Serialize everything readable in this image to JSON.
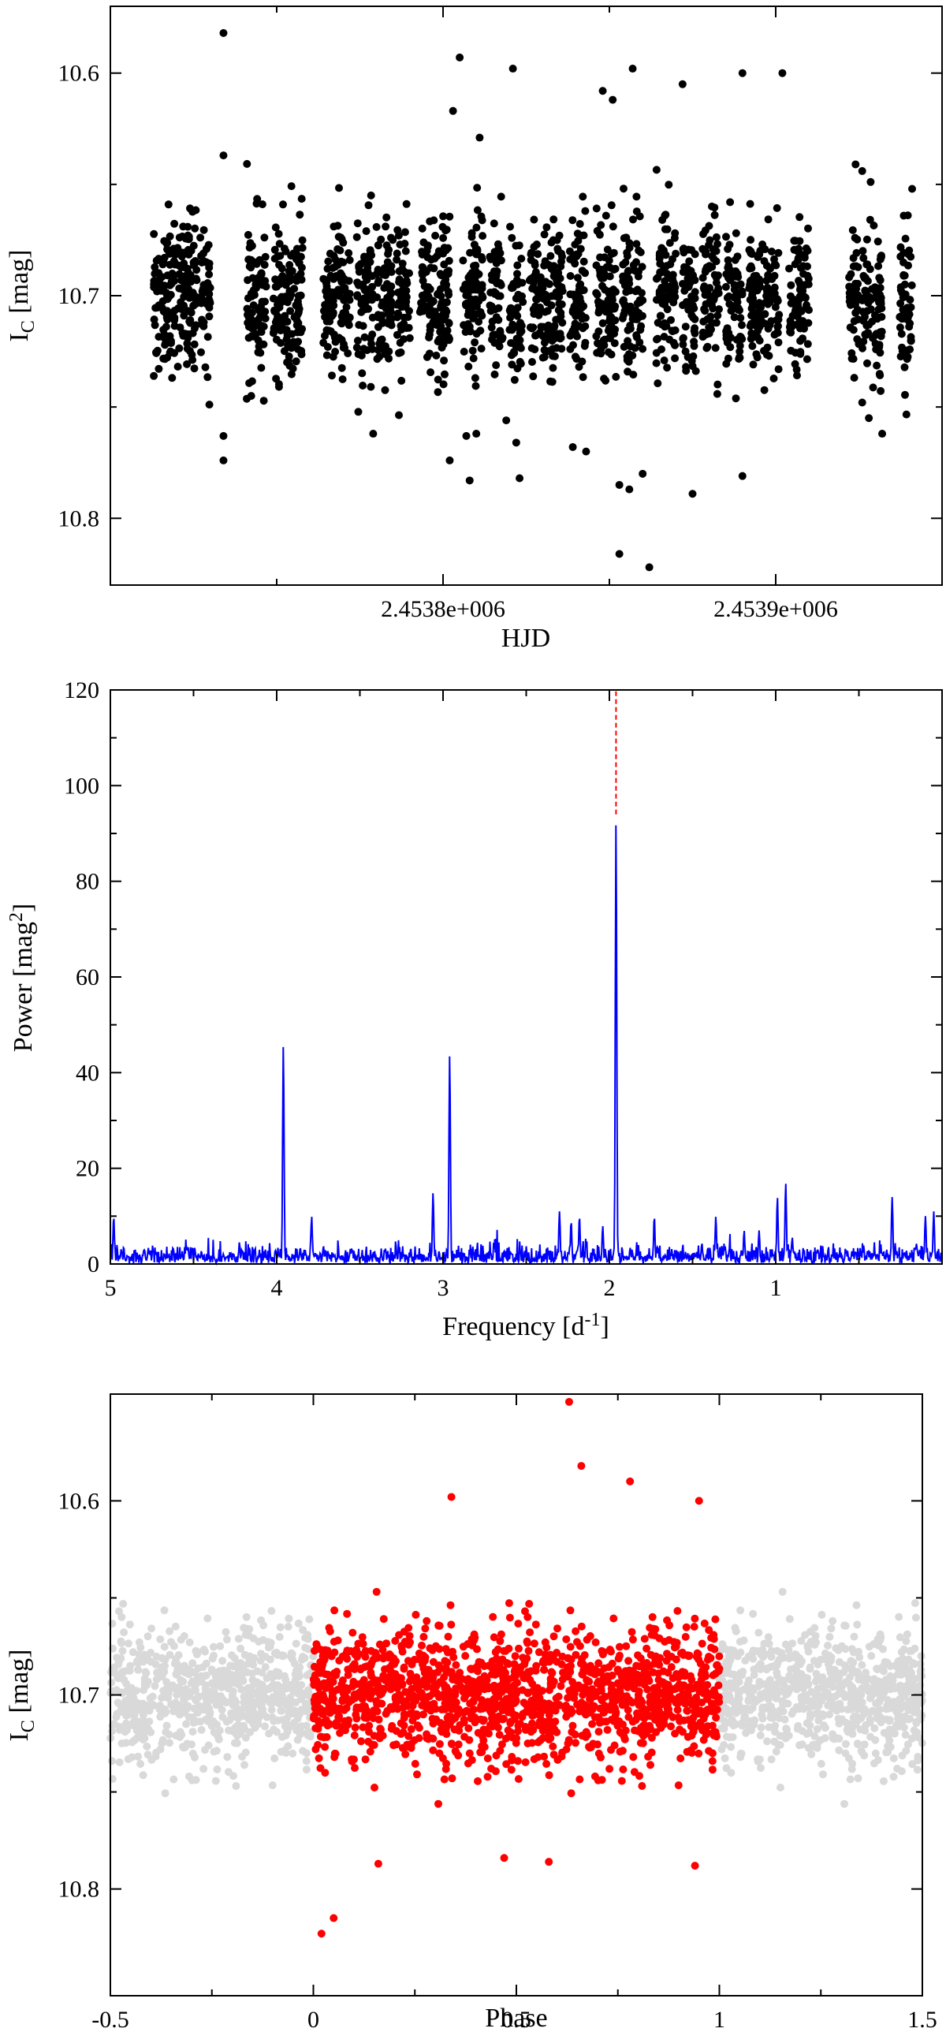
{
  "chart_data": [
    {
      "type": "scatter",
      "xlabel": "HJD",
      "ylabel_main": "I",
      "ylabel_sub": "C",
      "ylabel_unit": " [mag]",
      "xlim": [
        2453700,
        2453950
      ],
      "ylim": [
        10.83,
        10.57
      ],
      "y_inverted": true,
      "xticks": [
        {
          "value": 2453800,
          "label": "2.4538e+006"
        },
        {
          "value": 2453900,
          "label": "2.4539e+006"
        }
      ],
      "yticks": [
        {
          "value": 10.6,
          "label": "10.6"
        },
        {
          "value": 10.7,
          "label": "10.7"
        },
        {
          "value": 10.8,
          "label": "10.8"
        }
      ],
      "y_minor_ticks": [
        10.65,
        10.75
      ],
      "marker_color": "#000000",
      "mean_mag": 10.7,
      "observing_blocks_hjd": [
        [
          2453713,
          2453726
        ],
        [
          2453727,
          2453730
        ],
        [
          2453741,
          2453747
        ],
        [
          2453749,
          2453758
        ],
        [
          2453764,
          2453772
        ],
        [
          2453774,
          2453779
        ],
        [
          2453780,
          2453785
        ],
        [
          2453786,
          2453790
        ],
        [
          2453793,
          2453802
        ],
        [
          2453806,
          2453812
        ],
        [
          2453814,
          2453818
        ],
        [
          2453820,
          2453824
        ],
        [
          2453826,
          2453836
        ],
        [
          2453838,
          2453843
        ],
        [
          2453846,
          2453852
        ],
        [
          2453854,
          2453860
        ],
        [
          2453864,
          2453870
        ],
        [
          2453872,
          2453876
        ],
        [
          2453878,
          2453883
        ],
        [
          2453885,
          2453890
        ],
        [
          2453892,
          2453901
        ],
        [
          2453904,
          2453910
        ],
        [
          2453922,
          2453925
        ],
        [
          2453926,
          2453932
        ],
        [
          2453937,
          2453941
        ]
      ],
      "points": [
        [
          2453734,
          10.582
        ],
        [
          2453805,
          10.593
        ],
        [
          2453821,
          10.598
        ],
        [
          2453848,
          10.608
        ],
        [
          2453851,
          10.612
        ],
        [
          2453857,
          10.598
        ],
        [
          2453890,
          10.6
        ],
        [
          2453902,
          10.6
        ],
        [
          2453872,
          10.605
        ],
        [
          2453803,
          10.617
        ],
        [
          2453811,
          10.629
        ],
        [
          2453734,
          10.637
        ],
        [
          2453924,
          10.641
        ],
        [
          2453926,
          10.644
        ],
        [
          2453941,
          10.652
        ],
        [
          2453779,
          10.762
        ],
        [
          2453734,
          10.763
        ],
        [
          2453734,
          10.774
        ],
        [
          2453802,
          10.774
        ],
        [
          2453807,
          10.763
        ],
        [
          2453822,
          10.766
        ],
        [
          2453839,
          10.768
        ],
        [
          2453843,
          10.77
        ],
        [
          2453860,
          10.78
        ],
        [
          2453853,
          10.785
        ],
        [
          2453856,
          10.787
        ],
        [
          2453875,
          10.789
        ],
        [
          2453890,
          10.781
        ],
        [
          2453823,
          10.782
        ],
        [
          2453808,
          10.783
        ],
        [
          2453853,
          10.816
        ],
        [
          2453862,
          10.822
        ],
        [
          2453810,
          10.762
        ],
        [
          2453819,
          10.756
        ],
        [
          2453926,
          10.748
        ],
        [
          2453928,
          10.755
        ],
        [
          2453932,
          10.762
        ]
      ]
    },
    {
      "type": "line",
      "xlabel": "Frequency [d",
      "xlabel_sup": "-1",
      "xlabel_tail": "]",
      "ylabel": "Power [mag",
      "ylabel_sup": "2",
      "ylabel_tail": "]",
      "xlim": [
        5,
        0
      ],
      "ylim": [
        0,
        120
      ],
      "x_inverted": true,
      "xticks": [
        {
          "value": 5,
          "label": "5"
        },
        {
          "value": 4,
          "label": "4"
        },
        {
          "value": 3,
          "label": "3"
        },
        {
          "value": 2,
          "label": "2"
        },
        {
          "value": 1,
          "label": "1"
        }
      ],
      "yticks": [
        {
          "value": 0,
          "label": "0"
        },
        {
          "value": 20,
          "label": "20"
        },
        {
          "value": 40,
          "label": "40"
        },
        {
          "value": 60,
          "label": "60"
        },
        {
          "value": 80,
          "label": "80"
        },
        {
          "value": 100,
          "label": "100"
        },
        {
          "value": 120,
          "label": "120"
        }
      ],
      "line_color": "#0000ff",
      "marker_line_color": "#ff0000",
      "marker_line_freq": 1.96,
      "marker_line_range": [
        94,
        120
      ],
      "peaks": [
        {
          "freq": 1.96,
          "power": 93
        },
        {
          "freq": 3.96,
          "power": 46
        },
        {
          "freq": 2.96,
          "power": 44
        },
        {
          "freq": 3.06,
          "power": 15
        },
        {
          "freq": 0.94,
          "power": 17
        },
        {
          "freq": 0.99,
          "power": 14
        },
        {
          "freq": 0.3,
          "power": 14
        },
        {
          "freq": 2.3,
          "power": 11
        },
        {
          "freq": 2.18,
          "power": 10
        },
        {
          "freq": 1.36,
          "power": 10
        },
        {
          "freq": 1.73,
          "power": 10
        },
        {
          "freq": 3.79,
          "power": 10
        },
        {
          "freq": 4.98,
          "power": 10
        },
        {
          "freq": 0.1,
          "power": 10
        },
        {
          "freq": 0.05,
          "power": 11
        },
        {
          "freq": 1.1,
          "power": 7
        },
        {
          "freq": 1.19,
          "power": 7
        },
        {
          "freq": 2.04,
          "power": 8
        },
        {
          "freq": 2.23,
          "power": 9
        }
      ],
      "noise_level": 2.5
    },
    {
      "type": "scatter",
      "xlabel": "Phase",
      "ylabel_main": "I",
      "ylabel_sub": "C",
      "ylabel_unit": " [mag]",
      "xlim": [
        -0.5,
        1.5
      ],
      "ylim": [
        10.855,
        10.545
      ],
      "y_inverted": true,
      "xticks": [
        {
          "value": -0.5,
          "label": "-0.5"
        },
        {
          "value": 0,
          "label": "0"
        },
        {
          "value": 0.5,
          "label": "0.5"
        },
        {
          "value": 1,
          "label": "1"
        },
        {
          "value": 1.5,
          "label": "1.5"
        }
      ],
      "yticks": [
        {
          "value": 10.6,
          "label": "10.6"
        },
        {
          "value": 10.7,
          "label": "10.7"
        },
        {
          "value": 10.8,
          "label": "10.8"
        }
      ],
      "y_minor_ticks": [
        10.65,
        10.75
      ],
      "series": [
        {
          "color": "#d9d9d9",
          "phase_range": [
            -0.5,
            0
          ]
        },
        {
          "color": "#ff0000",
          "phase_range": [
            0,
            1
          ]
        },
        {
          "color": "#d9d9d9",
          "phase_range": [
            1,
            1.5
          ]
        }
      ],
      "mean_mag": 10.7,
      "points": [
        [
          0.63,
          10.549
        ],
        [
          0.66,
          10.582
        ],
        [
          0.78,
          10.59
        ],
        [
          0.34,
          10.598
        ],
        [
          0.95,
          10.6
        ],
        [
          0.02,
          10.823
        ],
        [
          0.05,
          10.815
        ],
        [
          0.94,
          10.788
        ],
        [
          0.16,
          10.787
        ],
        [
          0.58,
          10.786
        ],
        [
          0.47,
          10.784
        ]
      ]
    }
  ]
}
